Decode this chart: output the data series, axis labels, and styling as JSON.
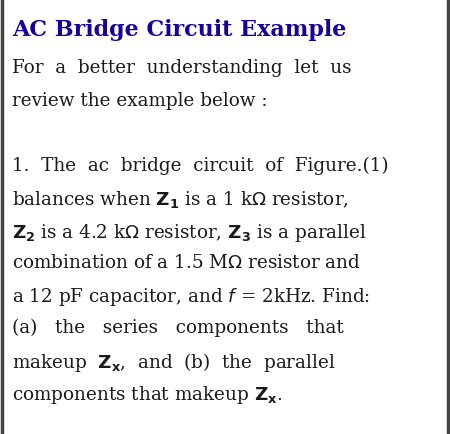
{
  "title": "AC Bridge Circuit Example",
  "bg_color": "#ffffff",
  "border_color": "#888888",
  "title_color": "#1a0099",
  "text_color": "#1a1a1a",
  "title_fontsize": 16,
  "body_fontsize": 13.2,
  "figsize": [
    4.5,
    4.34
  ],
  "dpi": 100,
  "body_lines": [
    [
      "For  a  better  understanding  let  us",
      false
    ],
    [
      "review the example below :",
      false
    ],
    [
      "",
      false
    ],
    [
      "1.  The  ac  bridge  circuit  of  Figure.(1)",
      false
    ],
    [
      "balances when $\\mathbf{Z_1}$ is a 1 k$\\Omega$ resistor,",
      false
    ],
    [
      "$\\mathbf{Z_2}$ is a 4.2 k$\\Omega$ resistor, $\\mathbf{Z_3}$ is a parallel",
      false
    ],
    [
      "combination of a 1.5 M$\\Omega$ resistor and",
      false
    ],
    [
      "a 12 pF capacitor, and $f$ = 2kHz. Find:",
      false
    ],
    [
      "(a)   the   series   components   that",
      false
    ],
    [
      "makeup  $\\mathbf{Z_x}$,  and  (b)  the  parallel",
      false
    ],
    [
      "components that makeup $\\mathbf{Z_x}$.",
      false
    ]
  ]
}
